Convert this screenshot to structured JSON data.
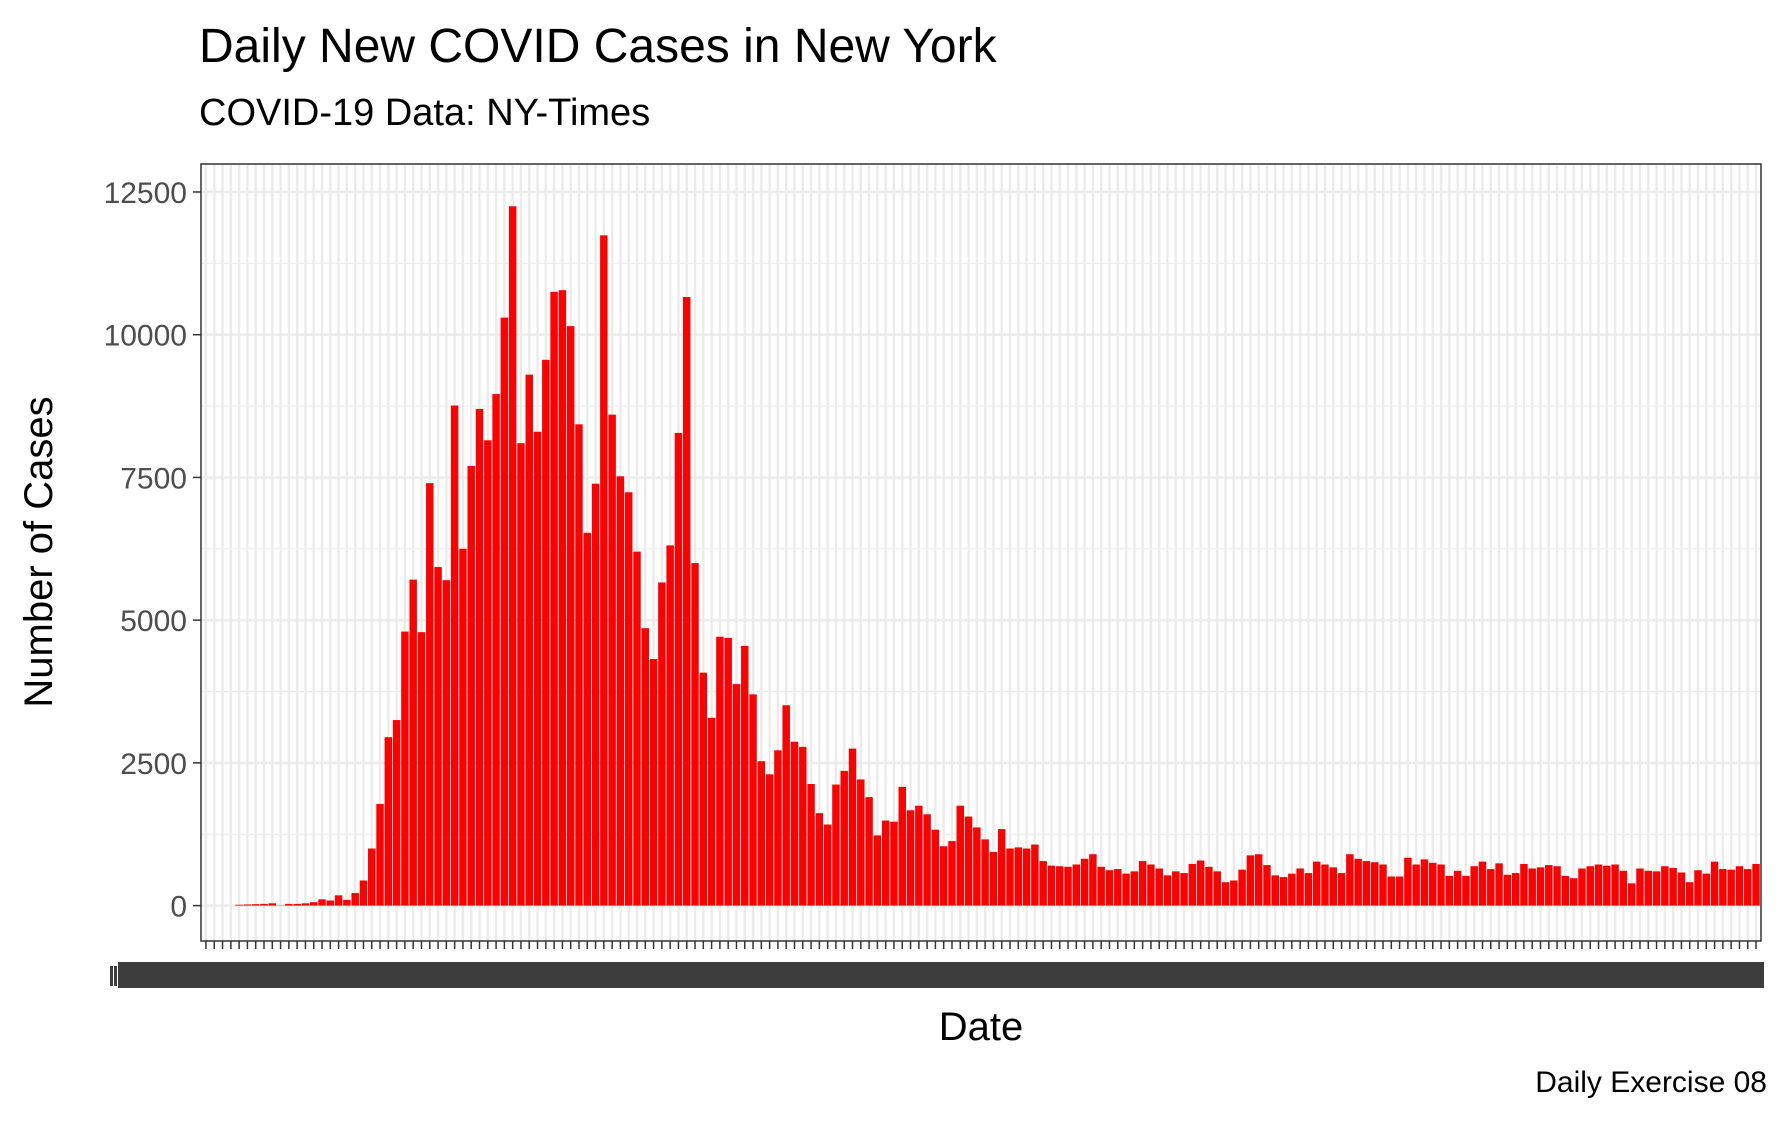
{
  "chart_data": {
    "type": "bar",
    "title": "Daily New COVID Cases in New York",
    "subtitle": "COVID-19 Data: NY-Times",
    "xlabel": "Date",
    "ylabel": "Number of Cases",
    "caption": "Daily Exercise 08",
    "ylim": [
      -620,
      12990
    ],
    "yticks": [
      0,
      2500,
      5000,
      7500,
      10000,
      12500
    ],
    "ytick_labels": [
      "0",
      "2500",
      "5000",
      "7500",
      "10000",
      "12500"
    ],
    "grid": true,
    "legend": "none",
    "bar_color": "#ff0000",
    "x_tick_labels_note": "overlapping date labels, illegible",
    "values": [
      0,
      0,
      0,
      0,
      15,
      20,
      25,
      30,
      40,
      5,
      30,
      30,
      40,
      60,
      110,
      90,
      180,
      100,
      220,
      440,
      1000,
      1780,
      2950,
      3250,
      4800,
      5710,
      4790,
      7400,
      5930,
      5700,
      8760,
      6250,
      7700,
      8700,
      8150,
      8960,
      10300,
      12250,
      8100,
      9300,
      8300,
      9560,
      10750,
      10780,
      10150,
      8430,
      6530,
      7390,
      11740,
      8600,
      7520,
      7240,
      6200,
      4860,
      4320,
      5660,
      6310,
      8280,
      10660,
      6000,
      4080,
      3290,
      4710,
      4690,
      3880,
      4550,
      3700,
      2530,
      2300,
      2720,
      3510,
      2870,
      2780,
      2130,
      1620,
      1420,
      2120,
      2360,
      2750,
      2210,
      1900,
      1230,
      1490,
      1470,
      2080,
      1670,
      1750,
      1600,
      1330,
      1040,
      1130,
      1750,
      1560,
      1370,
      1160,
      940,
      1340,
      1000,
      1020,
      1000,
      1070,
      780,
      700,
      690,
      680,
      720,
      820,
      900,
      680,
      620,
      640,
      560,
      600,
      780,
      720,
      650,
      530,
      600,
      570,
      730,
      790,
      680,
      600,
      410,
      440,
      630,
      880,
      900,
      710,
      530,
      500,
      560,
      650,
      570,
      770,
      720,
      670,
      570,
      900,
      820,
      780,
      760,
      720,
      510,
      510,
      840,
      720,
      810,
      750,
      720,
      520,
      610,
      520,
      690,
      770,
      640,
      740,
      540,
      570,
      730,
      650,
      670,
      710,
      690,
      520,
      480,
      650,
      690,
      720,
      700,
      720,
      610,
      390,
      650,
      610,
      600,
      690,
      660,
      580,
      410,
      620,
      560,
      770,
      640,
      630,
      690,
      640,
      730
    ]
  }
}
